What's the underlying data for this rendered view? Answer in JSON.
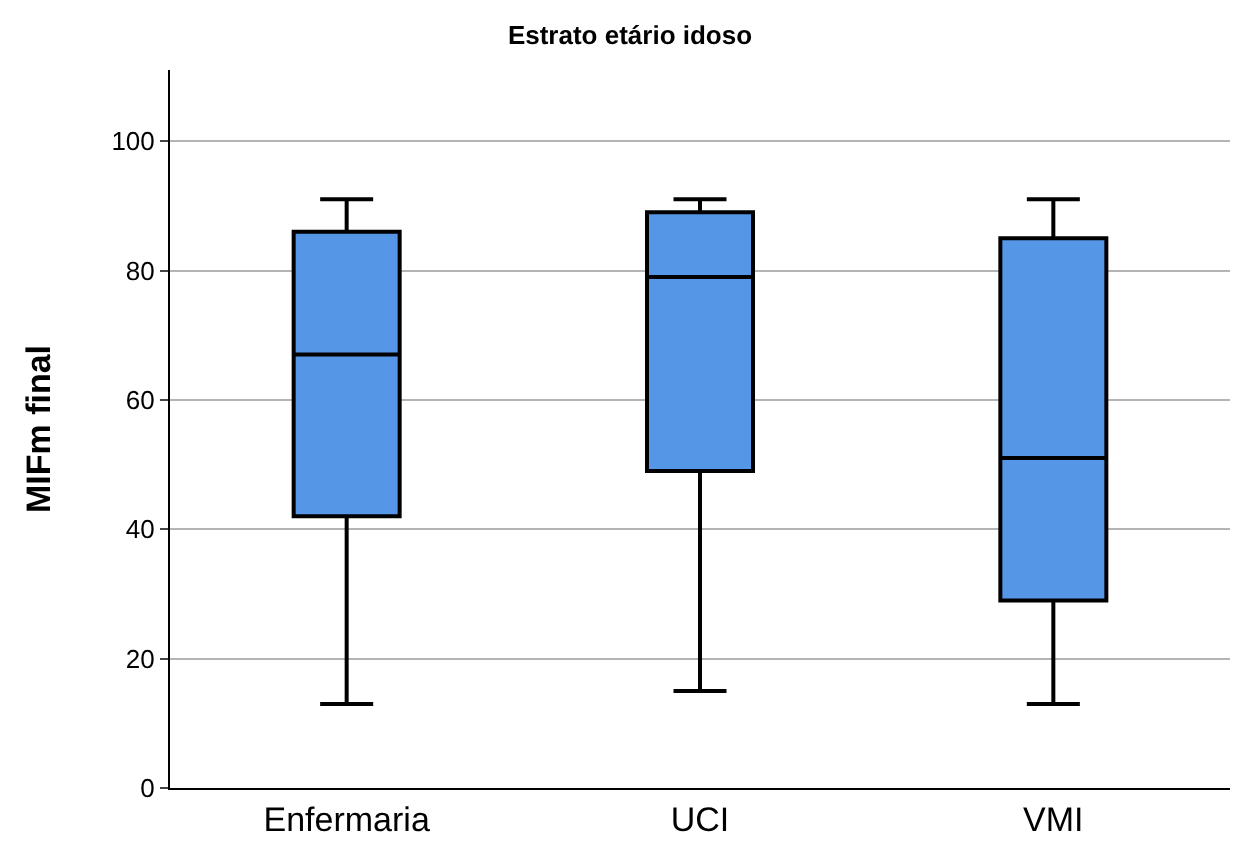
{
  "chart_data": {
    "type": "box",
    "title": "Estrato etário idoso",
    "ylabel": "MIFm final",
    "categories": [
      "Enfermaria",
      "UCI",
      "VMI"
    ],
    "boxes": [
      {
        "low": 13,
        "q1": 42,
        "median": 67,
        "q3": 86,
        "high": 91
      },
      {
        "low": 15,
        "q1": 49,
        "median": 79,
        "q3": 89,
        "high": 91
      },
      {
        "low": 13,
        "q1": 29,
        "median": 51,
        "q3": 85,
        "high": 91
      }
    ],
    "color": "#5596e6",
    "ylim": [
      0,
      111
    ],
    "yticks": [
      0,
      20,
      40,
      60,
      80,
      100
    ],
    "grid": "y",
    "legend": false
  }
}
